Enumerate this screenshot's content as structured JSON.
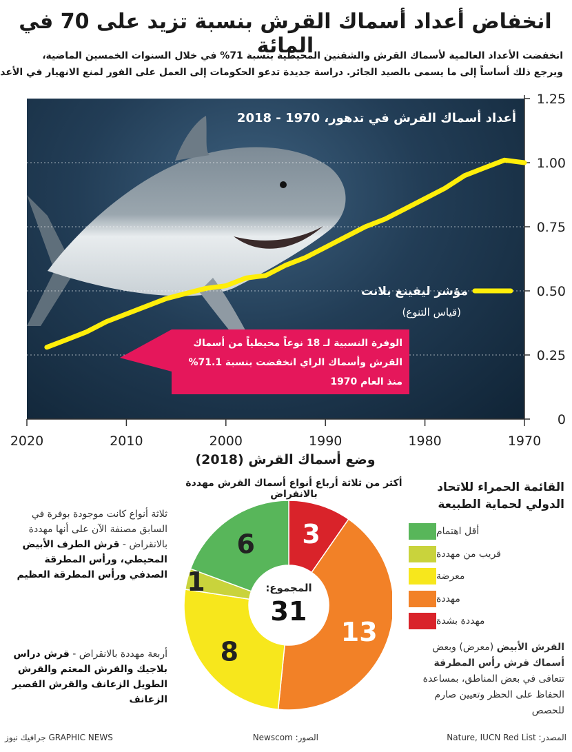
{
  "header": {
    "title": "انخفاض أعداد أسماك القرش بنسبة تزيد على 70 في المائة",
    "intro_line1": "انخفضت الأعداد العالمية لأسماك القرش والشفنين المحيطية بنسبة 71% في خلال السنوات الخمسين الماضية،",
    "intro_line2": "ويرجع ذلك أساساً إلى ما يسمى بالصيد الجائر. دراسة جديدة تدعو الحكومات إلى العمل على الفور لمنع الانهيار في الأعداد"
  },
  "chart_data": [
    {
      "type": "line",
      "title": "أعداد أسماك القرش في تدهور، 1970 - 2018",
      "series": [
        {
          "name": "مؤشر ليفينغ بلانت",
          "subtitle": "(قياس التنوع)",
          "x": [
            1970,
            1972,
            1974,
            1976,
            1978,
            1980,
            1982,
            1984,
            1986,
            1988,
            1990,
            1992,
            1994,
            1996,
            1998,
            2000,
            2002,
            2004,
            2006,
            2008,
            2010,
            2012,
            2014,
            2016,
            2018
          ],
          "y": [
            1.0,
            1.01,
            0.98,
            0.95,
            0.9,
            0.86,
            0.82,
            0.78,
            0.75,
            0.71,
            0.67,
            0.63,
            0.6,
            0.56,
            0.55,
            0.52,
            0.51,
            0.49,
            0.47,
            0.44,
            0.41,
            0.38,
            0.34,
            0.31,
            0.28
          ]
        }
      ],
      "x_reversed": true,
      "xlim": [
        1970,
        2020
      ],
      "ylim": [
        0,
        1.25
      ],
      "x_ticks": [
        "1970",
        "1980",
        "1990",
        "2000",
        "2010",
        "2020"
      ],
      "y_ticks": [
        "0",
        "0.25",
        "0.50",
        "0.75",
        "1.00",
        "1.25"
      ],
      "gridlines": [
        0.25,
        0.5,
        0.75,
        1.0
      ],
      "callout": [
        "الوفرة النسبية لـ 18 نوعاً محيطياً من أسماك",
        "القرش وأسماك الراي انخفضت بنسبة 71.1%",
        "منذ العام 1970"
      ]
    },
    {
      "type": "pie",
      "title": "أكثر من ثلاثة أرباع أنواع أسماك القرش مهددة بالانقراض",
      "total_label": "المجموع:",
      "total": 31,
      "categories": [
        "مهددة بشدة",
        "مهددة",
        "معرضة",
        "قريب من مهددة",
        "أقل اهتمام"
      ],
      "values": [
        3,
        13,
        8,
        1,
        6
      ],
      "colors": [
        "#d9232a",
        "#f28127",
        "#f7e71c",
        "#c9d33c",
        "#58b65a"
      ]
    }
  ],
  "photo_caption": "الصور: Newscom",
  "section": {
    "title": "وضع أسماك القرش (2018)"
  },
  "legend": {
    "title_line1": "القائمة الحمراء للاتحاد",
    "title_line2": "الدولي لحماية الطبيعة",
    "items": [
      {
        "label": "أقل اهتمام",
        "color": "#58b65a"
      },
      {
        "label": "قريب من مهددة",
        "color": "#c9d33c"
      },
      {
        "label": "معرضة",
        "color": "#f7e71c"
      },
      {
        "label": "مهددة",
        "color": "#f28127"
      },
      {
        "label": "مهددة بشدة",
        "color": "#d9232a"
      }
    ],
    "note_bold1": "القرش الأبيض",
    "note_mid1": " (معرض) وبعض ",
    "note_bold2": "أسماك قرش رأس المطرقة",
    "note_rest": " تتعافى في بعض المناطق، بمساعدة الحفاظ على الحظر وتعيين صارم للحصص"
  },
  "notes": {
    "critical_intro": "ثلاثة أنواع كانت موجودة بوفرة في السابق مصنفة الآن على أنها مهددة بالانقراض -",
    "critical_species": "قرش الطرف الأبيض المحيطي، ورأس المطرقة الصدفي ورأس المطرقة العظيم",
    "endangered_intro": "أربعة مهددة بالانقراض -",
    "endangered_species": "قرش دراس بلاجيك والقرش المعتم والقرش الطويل الزعانف والقرش القصير الزعانف"
  },
  "footer": {
    "source": "المصدر: Nature, IUCN Red List",
    "photos": "الصور: Newscom",
    "credit": "GRAPHIC NEWS جرافيك نيوز"
  },
  "colors": {
    "line": "#ffee0a",
    "callout": "#e5175b",
    "ocean": "#1b3550"
  }
}
